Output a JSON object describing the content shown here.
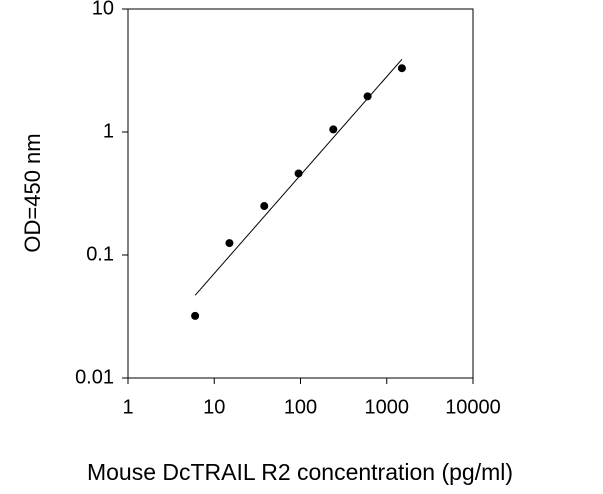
{
  "chart_data": {
    "type": "scatter",
    "xlabel": "Mouse DcTRAIL R2 concentration (pg/ml)",
    "ylabel": "OD=450 nm",
    "xscale": "log",
    "yscale": "log",
    "xlim": [
      1,
      10000
    ],
    "xticks": [
      1,
      10,
      100,
      1000,
      10000
    ],
    "ylim": [
      0.01,
      10
    ],
    "yticks": [
      0.01,
      0.1,
      1,
      10
    ],
    "series": [
      {
        "type": "scatter",
        "color": "#000000",
        "x": [
          6,
          15,
          38,
          95,
          240,
          600,
          1500
        ],
        "values": [
          0.032,
          0.125,
          0.25,
          0.46,
          1.05,
          1.95,
          3.3
        ]
      },
      {
        "type": "line",
        "color": "#000000",
        "x": [
          6,
          1500
        ],
        "values": [
          0.047,
          3.9
        ]
      }
    ]
  }
}
